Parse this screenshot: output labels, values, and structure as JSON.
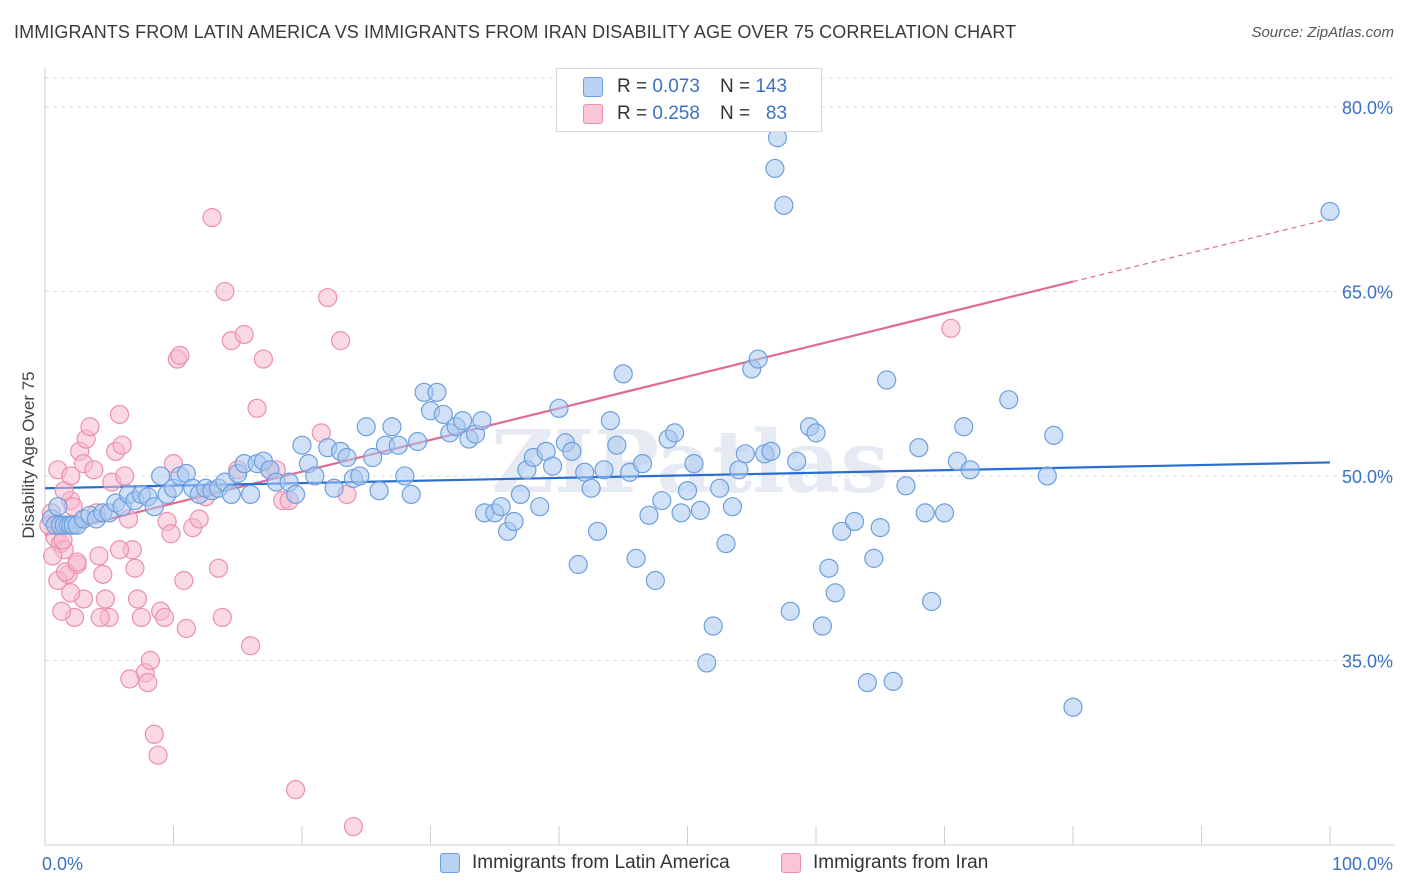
{
  "title": "IMMIGRANTS FROM LATIN AMERICA VS IMMIGRANTS FROM IRAN DISABILITY AGE OVER 75 CORRELATION CHART",
  "source": "Source: ZipAtlas.com",
  "watermark": "ZIPatlas",
  "legend": {
    "rows": [
      {
        "r_label": "R =",
        "r_value": "0.073",
        "n_label": "N =",
        "n_value": "143"
      },
      {
        "r_label": "R =",
        "r_value": "0.258",
        "n_label": "N =",
        "n_value": "83"
      }
    ]
  },
  "chart_data": {
    "type": "scatter",
    "xlabel": "",
    "ylabel": "Disability Age Over 75",
    "xlim": [
      0,
      100
    ],
    "ylim": [
      20,
      83
    ],
    "x_tick_labels": [
      "0.0%",
      "100.0%"
    ],
    "y_ticks": [
      35,
      50,
      65,
      80
    ],
    "y_tick_labels": [
      "35.0%",
      "50.0%",
      "65.0%",
      "80.0%"
    ],
    "grid": true,
    "legend_position": "bottom",
    "series": [
      {
        "name": "Immigrants from Latin America",
        "color": "#a9c8f0",
        "stroke": "#6e9fdc",
        "line_color": "#2a6fd0",
        "trend": {
          "x": [
            0,
            100
          ],
          "y": [
            49.0,
            51.1
          ]
        },
        "points": [
          [
            0.5,
            46.5
          ],
          [
            0.8,
            46.0
          ],
          [
            1.0,
            47.5
          ],
          [
            1.2,
            46.0
          ],
          [
            1.5,
            46.0
          ],
          [
            1.8,
            46.0
          ],
          [
            2.0,
            46.0
          ],
          [
            2.2,
            46.0
          ],
          [
            2.5,
            46.0
          ],
          [
            3,
            46.5
          ],
          [
            3.5,
            46.8
          ],
          [
            4,
            46.5
          ],
          [
            4.5,
            47.0
          ],
          [
            5,
            47.0
          ],
          [
            5.5,
            47.8
          ],
          [
            6,
            47.5
          ],
          [
            6.5,
            48.5
          ],
          [
            7,
            48.0
          ],
          [
            7.5,
            48.5
          ],
          [
            8,
            48.3
          ],
          [
            8.5,
            47.5
          ],
          [
            9,
            50.0
          ],
          [
            9.5,
            48.5
          ],
          [
            10,
            49.0
          ],
          [
            10.5,
            50.0
          ],
          [
            11,
            50.2
          ],
          [
            11.5,
            49.0
          ],
          [
            12,
            48.5
          ],
          [
            12.5,
            49.0
          ],
          [
            13,
            48.8
          ],
          [
            13.5,
            49.0
          ],
          [
            14,
            49.5
          ],
          [
            14.5,
            48.5
          ],
          [
            15,
            50.2
          ],
          [
            15.5,
            51.0
          ],
          [
            16,
            48.5
          ],
          [
            16.5,
            51.0
          ],
          [
            17,
            51.2
          ],
          [
            17.5,
            50.5
          ],
          [
            18,
            49.5
          ],
          [
            19,
            49.5
          ],
          [
            19.5,
            48.5
          ],
          [
            20,
            52.5
          ],
          [
            20.5,
            51.0
          ],
          [
            21,
            50.0
          ],
          [
            22,
            52.3
          ],
          [
            22.5,
            49.0
          ],
          [
            23,
            52.0
          ],
          [
            23.5,
            51.5
          ],
          [
            24,
            49.8
          ],
          [
            24.5,
            50.0
          ],
          [
            25,
            54.0
          ],
          [
            25.5,
            51.5
          ],
          [
            26,
            48.8
          ],
          [
            26.5,
            52.5
          ],
          [
            27,
            54.0
          ],
          [
            27.5,
            52.5
          ],
          [
            28,
            50.0
          ],
          [
            28.5,
            48.5
          ],
          [
            29,
            52.8
          ],
          [
            29.5,
            56.8
          ],
          [
            30,
            55.3
          ],
          [
            30.5,
            56.8
          ],
          [
            31,
            55.0
          ],
          [
            31.5,
            53.5
          ],
          [
            32,
            54.0
          ],
          [
            32.5,
            54.5
          ],
          [
            33,
            53.0
          ],
          [
            33.5,
            53.4
          ],
          [
            34,
            54.5
          ],
          [
            34.2,
            47.0
          ],
          [
            35,
            47.0
          ],
          [
            35.5,
            47.5
          ],
          [
            36,
            45.5
          ],
          [
            36.5,
            46.3
          ],
          [
            37,
            48.5
          ],
          [
            37.5,
            50.5
          ],
          [
            38,
            51.5
          ],
          [
            38.5,
            47.5
          ],
          [
            39,
            52.0
          ],
          [
            39.5,
            50.8
          ],
          [
            40,
            55.5
          ],
          [
            40.5,
            52.7
          ],
          [
            41,
            52.0
          ],
          [
            41.5,
            42.8
          ],
          [
            42,
            50.3
          ],
          [
            42.5,
            49.0
          ],
          [
            43,
            45.5
          ],
          [
            43.5,
            50.5
          ],
          [
            44,
            54.5
          ],
          [
            44.5,
            52.5
          ],
          [
            45,
            58.3
          ],
          [
            45.5,
            50.3
          ],
          [
            46,
            43.3
          ],
          [
            46.5,
            51.0
          ],
          [
            47,
            46.8
          ],
          [
            47.5,
            41.5
          ],
          [
            48,
            48.0
          ],
          [
            48.5,
            53.0
          ],
          [
            49,
            53.5
          ],
          [
            49.5,
            47.0
          ],
          [
            50,
            48.8
          ],
          [
            50.5,
            51.0
          ],
          [
            51,
            47.2
          ],
          [
            51.5,
            34.8
          ],
          [
            52,
            37.8
          ],
          [
            52.5,
            49.0
          ],
          [
            53,
            44.5
          ],
          [
            53.5,
            47.5
          ],
          [
            54,
            50.5
          ],
          [
            54.5,
            51.8
          ],
          [
            55,
            58.7
          ],
          [
            55.5,
            59.5
          ],
          [
            56,
            51.8
          ],
          [
            56.5,
            52.0
          ],
          [
            57,
            77.5
          ],
          [
            56.8,
            75.0
          ],
          [
            57.5,
            72.0
          ],
          [
            58,
            39.0
          ],
          [
            58.5,
            51.2
          ],
          [
            59.5,
            54.0
          ],
          [
            60,
            53.5
          ],
          [
            60.5,
            37.8
          ],
          [
            61,
            42.5
          ],
          [
            61.5,
            40.5
          ],
          [
            62,
            45.5
          ],
          [
            63,
            46.3
          ],
          [
            64,
            33.2
          ],
          [
            64.5,
            43.3
          ],
          [
            65,
            45.8
          ],
          [
            65.5,
            57.8
          ],
          [
            66,
            33.3
          ],
          [
            67,
            49.2
          ],
          [
            68,
            52.3
          ],
          [
            68.5,
            47.0
          ],
          [
            69,
            39.8
          ],
          [
            70,
            47.0
          ],
          [
            71,
            51.2
          ],
          [
            71.5,
            54.0
          ],
          [
            72,
            50.5
          ],
          [
            75,
            56.2
          ],
          [
            78,
            50.0
          ],
          [
            78.5,
            53.3
          ],
          [
            80,
            31.2
          ],
          [
            100,
            71.5
          ]
        ]
      },
      {
        "name": "Immigrants from Iran",
        "color": "#f6b9cd",
        "stroke": "#ec8fae",
        "line_color": "#e06a93",
        "trend": {
          "x": [
            0,
            80
          ],
          "y": [
            45.2,
            65.8
          ]
        },
        "trend_ext": {
          "x": [
            80,
            100
          ],
          "y": [
            65.8,
            70.9
          ]
        },
        "points": [
          [
            0.5,
            47.0
          ],
          [
            0.8,
            45.0
          ],
          [
            1.0,
            46.0
          ],
          [
            1.2,
            44.5
          ],
          [
            1.5,
            44.0
          ],
          [
            1.8,
            42.0
          ],
          [
            2.0,
            48.0
          ],
          [
            2.2,
            47.5
          ],
          [
            2.5,
            42.8
          ],
          [
            3,
            40.0
          ],
          [
            0.3,
            46.0
          ],
          [
            0.6,
            43.5
          ],
          [
            1.0,
            41.5
          ],
          [
            1.4,
            44.8
          ],
          [
            1.6,
            42.2
          ],
          [
            2.0,
            40.5
          ],
          [
            2.3,
            38.5
          ],
          [
            2.5,
            43.0
          ],
          [
            2.7,
            52.0
          ],
          [
            3.0,
            51.0
          ],
          [
            3.2,
            53.0
          ],
          [
            3.5,
            54.0
          ],
          [
            3.8,
            50.5
          ],
          [
            4.0,
            47.0
          ],
          [
            4.2,
            43.5
          ],
          [
            4.5,
            42.0
          ],
          [
            4.7,
            40.0
          ],
          [
            5.0,
            38.5
          ],
          [
            5.2,
            49.5
          ],
          [
            5.5,
            52.0
          ],
          [
            5.8,
            55.0
          ],
          [
            6.0,
            52.5
          ],
          [
            6.2,
            50.0
          ],
          [
            6.5,
            46.5
          ],
          [
            6.8,
            44.0
          ],
          [
            7.0,
            42.5
          ],
          [
            7.2,
            40.0
          ],
          [
            7.5,
            38.5
          ],
          [
            7.8,
            34.0
          ],
          [
            8.0,
            33.2
          ],
          [
            8.2,
            35.0
          ],
          [
            8.5,
            29.0
          ],
          [
            8.8,
            27.3
          ],
          [
            9.0,
            39.0
          ],
          [
            9.3,
            38.5
          ],
          [
            9.5,
            46.3
          ],
          [
            9.8,
            45.3
          ],
          [
            10.0,
            51.0
          ],
          [
            10.3,
            59.5
          ],
          [
            10.5,
            59.8
          ],
          [
            10.8,
            41.5
          ],
          [
            11.0,
            37.6
          ],
          [
            11.5,
            45.8
          ],
          [
            12.0,
            46.5
          ],
          [
            12.5,
            48.3
          ],
          [
            13.0,
            71.0
          ],
          [
            13.5,
            42.5
          ],
          [
            13.8,
            38.5
          ],
          [
            14.0,
            65.0
          ],
          [
            14.5,
            61.0
          ],
          [
            15.0,
            50.5
          ],
          [
            15.5,
            61.5
          ],
          [
            16.0,
            36.2
          ],
          [
            16.5,
            55.5
          ],
          [
            17.0,
            59.5
          ],
          [
            17.5,
            50.5
          ],
          [
            18.0,
            50.5
          ],
          [
            18.5,
            48.0
          ],
          [
            19.0,
            48.0
          ],
          [
            19.5,
            24.5
          ],
          [
            21.5,
            53.5
          ],
          [
            22,
            64.5
          ],
          [
            23,
            61.0
          ],
          [
            23.5,
            48.5
          ],
          [
            24,
            21.5
          ],
          [
            1,
            50.5
          ],
          [
            1.5,
            48.8
          ],
          [
            2,
            50
          ],
          [
            1.3,
            39
          ],
          [
            4.3,
            38.5
          ],
          [
            6.6,
            33.5
          ],
          [
            5.8,
            44
          ],
          [
            70.5,
            62.0
          ]
        ]
      }
    ]
  },
  "bottom_legend": [
    {
      "label": "Immigrants from Latin America"
    },
    {
      "label": "Immigrants from Iran"
    }
  ]
}
